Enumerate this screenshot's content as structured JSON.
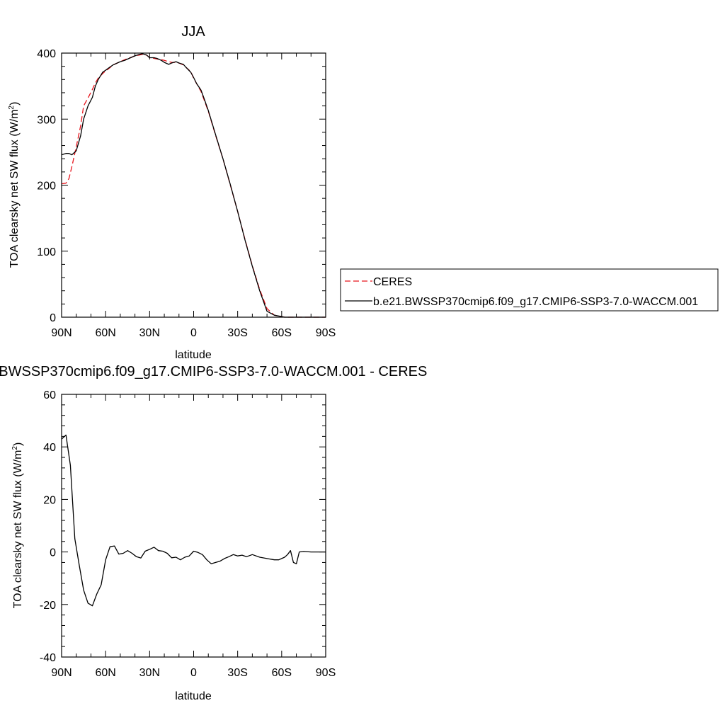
{
  "chart_data": [
    {
      "type": "line",
      "title": "JJA",
      "xlabel": "latitude",
      "ylabel_main": "TOA clearsky net SW flux (W/m",
      "ylabel_sup": "2",
      "ylabel_close": ")",
      "xlim": [
        90,
        -90
      ],
      "ylim": [
        0,
        400
      ],
      "x_ticks": [
        {
          "value": 90,
          "label": "90N"
        },
        {
          "value": 60,
          "label": "60N"
        },
        {
          "value": 30,
          "label": "30N"
        },
        {
          "value": 0,
          "label": "0"
        },
        {
          "value": -30,
          "label": "30S"
        },
        {
          "value": -60,
          "label": "60S"
        },
        {
          "value": -90,
          "label": "90S"
        }
      ],
      "y_ticks": [
        {
          "value": 0,
          "label": "0"
        },
        {
          "value": 100,
          "label": "100"
        },
        {
          "value": 200,
          "label": "200"
        },
        {
          "value": 300,
          "label": "300"
        },
        {
          "value": 400,
          "label": "400"
        }
      ],
      "legend_position": "right",
      "series": [
        {
          "name": "CERES",
          "color": "#e8141c",
          "dash": "dashed",
          "x": [
            90,
            87,
            85,
            83,
            80,
            77,
            75,
            72,
            69,
            67,
            65,
            62,
            60,
            57,
            55,
            52,
            50,
            47,
            45,
            42,
            40,
            37,
            35,
            32,
            30,
            27,
            25,
            22,
            20,
            17,
            15,
            12,
            10,
            7,
            5,
            2,
            0,
            -2,
            -5,
            -7,
            -10,
            -15,
            -20,
            -25,
            -30,
            -35,
            -40,
            -45,
            -50,
            -55,
            -60,
            -62,
            -65,
            -67,
            -70,
            -75,
            -80,
            -85,
            -90
          ],
          "y": [
            202,
            203,
            210,
            228,
            258,
            290,
            320,
            332,
            345,
            355,
            362,
            369,
            373,
            378,
            382,
            385,
            387,
            390,
            392,
            394,
            396,
            397,
            398,
            397,
            393,
            392,
            391,
            390,
            389,
            387,
            386,
            386,
            385,
            382,
            378,
            372,
            362,
            354,
            342,
            330,
            312,
            275,
            240,
            200,
            160,
            118,
            78,
            42,
            13,
            3,
            1,
            0,
            0,
            0,
            0,
            0,
            0,
            0,
            0
          ]
        },
        {
          "name": "b.e21.BWSSP370cmip6.f09_g17.CMIP6-SSP3-7.0-WACCM.001",
          "color": "#000000",
          "dash": "solid",
          "x": [
            90,
            87,
            85,
            83,
            80,
            77,
            75,
            72,
            69,
            67,
            65,
            62,
            60,
            57,
            55,
            52,
            50,
            47,
            45,
            42,
            40,
            37,
            35,
            32,
            30,
            27,
            25,
            22,
            20,
            17,
            15,
            12,
            10,
            7,
            5,
            2,
            0,
            -2,
            -5,
            -7,
            -10,
            -15,
            -20,
            -25,
            -30,
            -35,
            -40,
            -45,
            -50,
            -55,
            -60,
            -62,
            -65,
            -67,
            -70,
            -75,
            -80,
            -85,
            -90
          ],
          "y": [
            246,
            248,
            248,
            246,
            252,
            275,
            300,
            320,
            333,
            350,
            360,
            371,
            374,
            379,
            382,
            385,
            387,
            389,
            391,
            394,
            396,
            398,
            399,
            397,
            393,
            393,
            392,
            389,
            386,
            383,
            385,
            387,
            385,
            383,
            378,
            371,
            363,
            354,
            344,
            332,
            313,
            276,
            240,
            201,
            160,
            117,
            77,
            40,
            9,
            3,
            1,
            0,
            0,
            0,
            0,
            0,
            0,
            0,
            0
          ]
        }
      ]
    },
    {
      "type": "line",
      "title": "b.e21.BWSSP370cmip6.f09_g17.CMIP6-SSP3-7.0-WACCM.001 - CERES",
      "xlabel": "latitude",
      "ylabel_main": "TOA clearsky net SW flux (W/m",
      "ylabel_sup": "2",
      "ylabel_close": ")",
      "xlim": [
        90,
        -90
      ],
      "ylim": [
        -40,
        60
      ],
      "x_ticks": [
        {
          "value": 90,
          "label": "90N"
        },
        {
          "value": 60,
          "label": "60N"
        },
        {
          "value": 30,
          "label": "30N"
        },
        {
          "value": 0,
          "label": "0"
        },
        {
          "value": -30,
          "label": "30S"
        },
        {
          "value": -60,
          "label": "60S"
        },
        {
          "value": -90,
          "label": "90S"
        }
      ],
      "y_ticks": [
        {
          "value": -40,
          "label": "-40"
        },
        {
          "value": -20,
          "label": "-20"
        },
        {
          "value": 0,
          "label": "0"
        },
        {
          "value": 20,
          "label": "20"
        },
        {
          "value": 40,
          "label": "40"
        },
        {
          "value": 60,
          "label": "60"
        }
      ],
      "series": [
        {
          "color": "#000000",
          "x": [
            90,
            87,
            84,
            81,
            78,
            75,
            72,
            69,
            66,
            63,
            60,
            57,
            54,
            51,
            48,
            45,
            42,
            39,
            36,
            33,
            30,
            27,
            24,
            21,
            18,
            15,
            12,
            9,
            6,
            3,
            0,
            -3,
            -6,
            -9,
            -12,
            -15,
            -18,
            -21,
            -24,
            -27,
            -30,
            -33,
            -36,
            -40,
            -45,
            -50,
            -55,
            -58,
            -60,
            -62,
            -64,
            -66,
            -68,
            -70,
            -72,
            -75,
            -80,
            -85,
            -90
          ],
          "y": [
            43,
            44.5,
            33,
            5,
            -5,
            -14.5,
            -19.5,
            -20.5,
            -16,
            -12.5,
            -3,
            2,
            2.3,
            -0.8,
            -0.5,
            0.5,
            -0.5,
            -1.8,
            -2.3,
            0.3,
            1,
            1.8,
            0.5,
            0.3,
            -0.5,
            -2.2,
            -2,
            -3,
            -2,
            -1.5,
            0.3,
            -0.2,
            -1,
            -3,
            -4.5,
            -4,
            -3.5,
            -2.5,
            -1.8,
            -1,
            -1.5,
            -1.2,
            -1.8,
            -1,
            -2,
            -2.5,
            -3,
            -3,
            -2.5,
            -2,
            -1,
            0.5,
            -4,
            -4.5,
            0,
            0.2,
            0,
            0,
            0
          ]
        }
      ]
    }
  ]
}
